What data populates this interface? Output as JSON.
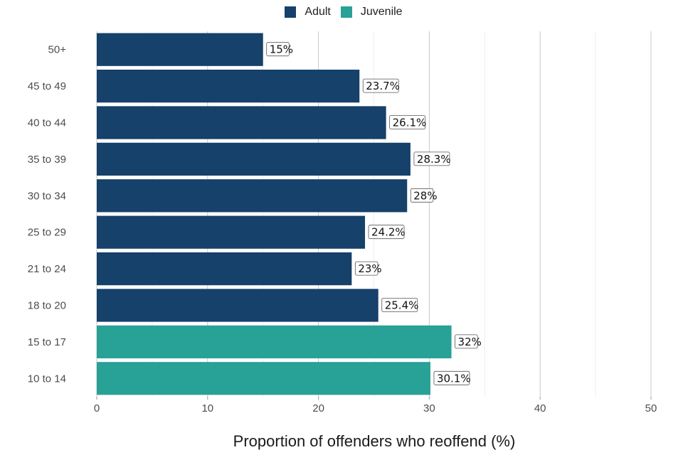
{
  "chart_data": {
    "type": "bar",
    "orientation": "horizontal",
    "title": "",
    "xlabel": "Proportion of offenders who reoffend (%)",
    "ylabel": "",
    "xlim": [
      0,
      50
    ],
    "xticks": [
      0,
      10,
      20,
      30,
      40,
      50
    ],
    "grid": true,
    "legend_position": "top",
    "legend": [
      {
        "name": "Adult",
        "color": "#15416a"
      },
      {
        "name": "Juvenile",
        "color": "#28a197"
      }
    ],
    "categories": [
      "50+",
      "45 to 49",
      "40 to 44",
      "35 to 39",
      "30 to 34",
      "25 to 29",
      "21 to 24",
      "18 to 20",
      "15 to 17",
      "10 to 14"
    ],
    "values": [
      15,
      23.7,
      26.1,
      28.3,
      28,
      24.2,
      23,
      25.4,
      32,
      30.1
    ],
    "groups": [
      "Adult",
      "Adult",
      "Adult",
      "Adult",
      "Adult",
      "Adult",
      "Adult",
      "Adult",
      "Juvenile",
      "Juvenile"
    ],
    "data_labels": [
      "15%",
      "23.7%",
      "26.1%",
      "28.3%",
      "28%",
      "24.2%",
      "23%",
      "25.4%",
      "32%",
      "30.1%"
    ]
  }
}
